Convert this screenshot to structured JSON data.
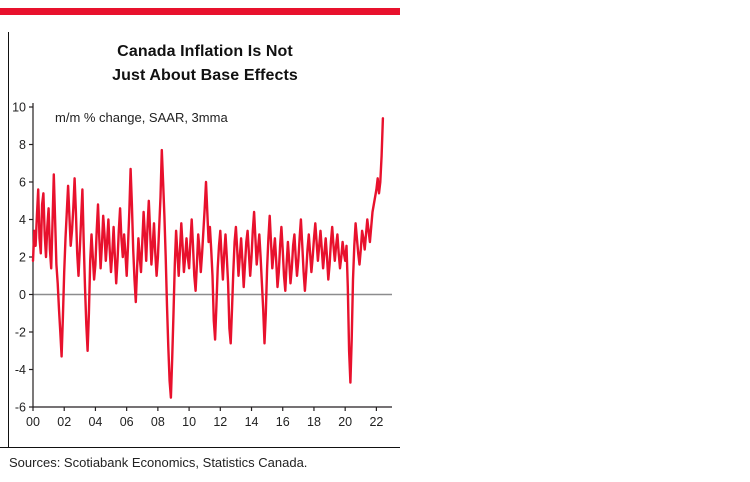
{
  "chart": {
    "title_line1": "Canada Inflation Is Not",
    "title_line2": "Just About Base Effects",
    "subtitle": "m/m % change, SAAR, 3mma",
    "source": "Sources: Scotiabank Economics, Statistics Canada.",
    "accent_color": "#e8112d",
    "axis_color": "#231f20",
    "zero_line_color": "#8c8c8e",
    "label_color": "#222222"
  },
  "chart_data": {
    "type": "line",
    "title": "Canada Inflation Is Not Just About Base Effects",
    "subtitle": "m/m % change, SAAR, 3mma",
    "xlabel": "",
    "ylabel": "",
    "ylim": [
      -6,
      10
    ],
    "xlim": [
      2000,
      2023
    ],
    "y_ticks": [
      -6,
      -4,
      -2,
      0,
      2,
      4,
      6,
      8,
      10
    ],
    "x_tick_years": [
      2000,
      2002,
      2004,
      2006,
      2008,
      2010,
      2012,
      2014,
      2016,
      2018,
      2020,
      2022
    ],
    "x_tick_labels": [
      "00",
      "02",
      "04",
      "06",
      "08",
      "10",
      "12",
      "14",
      "16",
      "18",
      "20",
      "22"
    ],
    "grid": "zero-line-only",
    "legend_position": "none",
    "x_start_year": 2000,
    "x_frequency": "monthly",
    "series": [
      {
        "name": "m/m % change, SAAR, 3mma",
        "color": "#e8112d",
        "values": [
          1.8,
          3.4,
          2.6,
          4.2,
          5.6,
          3.0,
          2.2,
          4.8,
          5.4,
          3.2,
          2.0,
          3.6,
          4.6,
          2.4,
          1.4,
          3.8,
          6.4,
          4.0,
          1.6,
          0.6,
          -0.8,
          -2.0,
          -3.3,
          -1.2,
          1.2,
          3.0,
          4.4,
          5.8,
          4.2,
          2.6,
          3.4,
          4.6,
          6.2,
          4.4,
          2.2,
          1.0,
          2.4,
          4.0,
          5.6,
          2.8,
          0.4,
          -1.6,
          -3.0,
          -1.0,
          1.8,
          3.2,
          2.0,
          0.8,
          1.6,
          3.4,
          4.8,
          3.0,
          1.4,
          2.6,
          4.2,
          3.2,
          1.8,
          2.8,
          4.0,
          2.4,
          1.2,
          2.2,
          3.6,
          2.0,
          0.6,
          1.8,
          3.4,
          4.6,
          3.0,
          2.0,
          3.2,
          2.2,
          1.0,
          2.6,
          4.4,
          6.7,
          4.8,
          2.4,
          0.8,
          -0.4,
          1.4,
          3.0,
          2.0,
          1.2,
          2.8,
          4.4,
          3.2,
          1.8,
          3.6,
          5.0,
          3.4,
          1.6,
          2.6,
          3.8,
          2.2,
          1.0,
          2.0,
          3.6,
          5.2,
          7.7,
          6.0,
          4.2,
          2.0,
          -0.6,
          -2.8,
          -4.6,
          -5.5,
          -3.4,
          -1.0,
          1.6,
          3.4,
          2.2,
          1.0,
          2.4,
          3.8,
          2.6,
          1.2,
          2.0,
          3.0,
          2.0,
          1.4,
          2.8,
          4.0,
          2.6,
          1.0,
          0.2,
          1.6,
          3.2,
          2.4,
          1.2,
          2.2,
          3.4,
          4.6,
          6.0,
          4.4,
          2.8,
          3.6,
          2.4,
          1.0,
          -1.4,
          -2.4,
          -0.6,
          1.4,
          2.6,
          3.4,
          2.0,
          0.8,
          2.2,
          3.2,
          2.0,
          0.6,
          -1.8,
          -2.6,
          -0.8,
          1.2,
          2.8,
          3.6,
          2.4,
          1.0,
          2.0,
          3.0,
          1.8,
          0.4,
          1.6,
          2.8,
          3.4,
          2.2,
          1.0,
          2.0,
          3.4,
          4.4,
          3.0,
          1.6,
          2.4,
          3.2,
          2.0,
          0.6,
          -0.8,
          -2.6,
          -1.0,
          1.4,
          3.0,
          4.2,
          2.8,
          1.4,
          2.2,
          3.0,
          1.8,
          0.4,
          1.2,
          2.6,
          3.6,
          2.4,
          1.0,
          0.2,
          1.6,
          2.8,
          1.8,
          0.6,
          1.4,
          2.6,
          3.2,
          2.0,
          1.0,
          1.8,
          3.0,
          4.0,
          2.6,
          1.2,
          0.2,
          1.2,
          2.4,
          3.2,
          2.2,
          1.2,
          2.0,
          3.0,
          3.8,
          2.8,
          1.8,
          2.6,
          3.4,
          2.4,
          1.4,
          2.2,
          3.0,
          2.0,
          0.8,
          1.6,
          2.8,
          3.6,
          2.6,
          1.8,
          2.6,
          3.2,
          2.2,
          1.4,
          2.0,
          2.8,
          2.2,
          1.8,
          2.6,
          0.4,
          -3.0,
          -4.7,
          -2.4,
          0.8,
          2.6,
          3.8,
          3.0,
          2.2,
          1.6,
          2.4,
          3.4,
          3.0,
          2.4,
          3.2,
          4.0,
          3.4,
          2.8,
          3.6,
          4.4,
          4.8,
          5.2,
          5.6,
          6.2,
          5.4,
          6.0,
          7.4,
          9.4
        ]
      }
    ]
  }
}
